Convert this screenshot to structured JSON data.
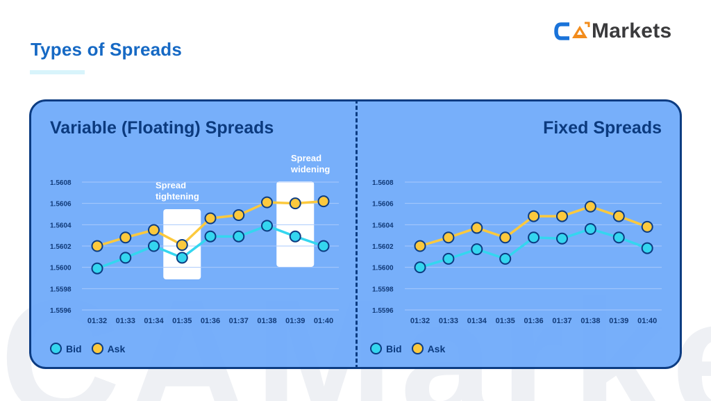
{
  "header": {
    "title": "Types of Spreads",
    "logo": {
      "mark": "CA",
      "text": "Markets",
      "mark_colors": [
        "#1a73d9",
        "#f28c1c"
      ]
    }
  },
  "watermark": "CAMarkets",
  "colors": {
    "title": "#1669c4",
    "card_bg": "#6ba8fa",
    "card_border": "#0c3c82",
    "bid": "#34d6ef",
    "ask": "#fcc93d",
    "marker_border": "#0c3c82",
    "gridline": "#a9cafc",
    "highlight_box": "#ffffff"
  },
  "panels": [
    {
      "title": "Variable (Floating) Spreads",
      "legend": [
        {
          "label": "Bid",
          "color": "#34d6ef"
        },
        {
          "label": "Ask",
          "color": "#fcc93d"
        }
      ],
      "annotations": [
        {
          "label_line1": "Spread",
          "label_line2": "tightening",
          "x_index": 3
        },
        {
          "label_line1": "Spread",
          "label_line2": "widening",
          "x_index": 7
        }
      ]
    },
    {
      "title": "Fixed Spreads",
      "legend": [
        {
          "label": "Bid",
          "color": "#34d6ef"
        },
        {
          "label": "Ask",
          "color": "#fcc93d"
        }
      ],
      "annotations": []
    }
  ],
  "chart_data": [
    {
      "type": "line",
      "title": "Variable (Floating) Spreads",
      "xlabel": "",
      "ylabel": "",
      "x": [
        "01:32",
        "01:33",
        "01:34",
        "01:35",
        "01:36",
        "01:37",
        "01:38",
        "01:39",
        "01:40"
      ],
      "yticks": [
        "1.5608",
        "1.5606",
        "1.5604",
        "1.5602",
        "1.5600",
        "1.5598",
        "1.5596"
      ],
      "ylim": [
        1.5596,
        1.5608
      ],
      "grid": true,
      "legend_position": "bottom-left",
      "series": [
        {
          "name": "Bid",
          "color": "#34d6ef",
          "values": [
            1.55999,
            1.56009,
            1.5602,
            1.56009,
            1.56029,
            1.56029,
            1.56039,
            1.56029,
            1.5602
          ]
        },
        {
          "name": "Ask",
          "color": "#fcc93d",
          "values": [
            1.5602,
            1.56028,
            1.56035,
            1.56021,
            1.56046,
            1.56049,
            1.56061,
            1.5606,
            1.56062
          ]
        }
      ],
      "annotations": [
        {
          "text": "Spread tightening",
          "x": "01:35"
        },
        {
          "text": "Spread widening",
          "x": "01:39"
        }
      ]
    },
    {
      "type": "line",
      "title": "Fixed Spreads",
      "xlabel": "",
      "ylabel": "",
      "x": [
        "01:32",
        "01:33",
        "01:34",
        "01:35",
        "01:36",
        "01:37",
        "01:38",
        "01:39",
        "01:40"
      ],
      "yticks": [
        "1.5608",
        "1.5606",
        "1.5604",
        "1.5602",
        "1.5600",
        "1.5598",
        "1.5596"
      ],
      "ylim": [
        1.5596,
        1.5608
      ],
      "grid": true,
      "legend_position": "bottom-left",
      "series": [
        {
          "name": "Bid",
          "color": "#34d6ef",
          "values": [
            1.56,
            1.56008,
            1.56017,
            1.56008,
            1.56028,
            1.56027,
            1.56036,
            1.56028,
            1.56018
          ]
        },
        {
          "name": "Ask",
          "color": "#fcc93d",
          "values": [
            1.5602,
            1.56028,
            1.56037,
            1.56028,
            1.56048,
            1.56048,
            1.56057,
            1.56048,
            1.56038
          ]
        }
      ]
    }
  ]
}
